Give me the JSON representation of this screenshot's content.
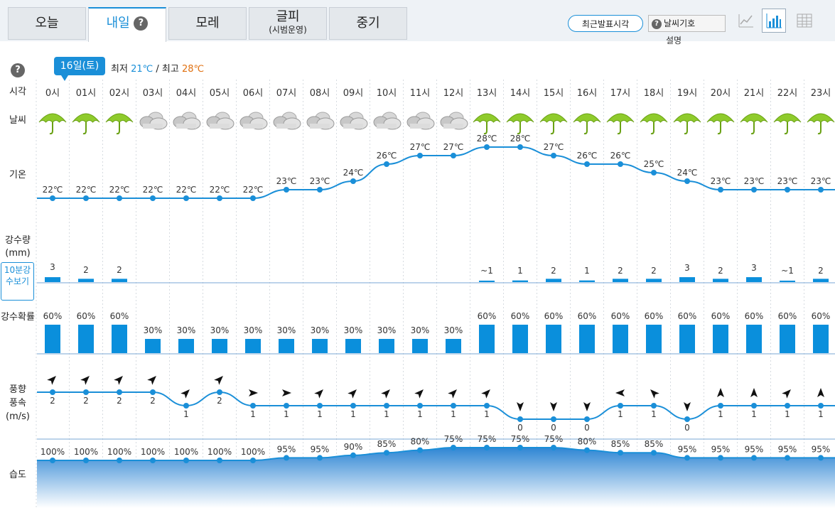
{
  "tabs": [
    {
      "label": "오늘",
      "sub": ""
    },
    {
      "label": "내일",
      "sub": ""
    },
    {
      "label": "모레",
      "sub": ""
    },
    {
      "label": "글피",
      "sub": "(시범운영)"
    },
    {
      "label": "중기",
      "sub": ""
    }
  ],
  "help_glyph": "?",
  "buttons": {
    "recent": "최근발표시각",
    "symbols": "날씨기호",
    "symbols_desc": "설명"
  },
  "date": {
    "badge": "16일(토)",
    "min_label": "최저",
    "min_value": "21℃",
    "sep": "/",
    "max_label": "최고",
    "max_value": "28℃"
  },
  "row_labels": {
    "time": "시각",
    "weather": "날씨",
    "temp": "기온",
    "precip": "강수량",
    "precip_unit": "(mm)",
    "ten_min": "10분강수보기",
    "prob": "강수확률",
    "wind1": "풍향",
    "wind2": "풍속",
    "wind_unit": "(m/s)",
    "humidity": "습도"
  },
  "colors": {
    "accent": "#1a8fd8",
    "bar": "#0a8fdc",
    "max": "#e07010"
  },
  "hours": [
    "0시",
    "01시",
    "02시",
    "03시",
    "04시",
    "05시",
    "06시",
    "07시",
    "08시",
    "09시",
    "10시",
    "11시",
    "12시",
    "13시",
    "14시",
    "15시",
    "16시",
    "17시",
    "18시",
    "19시",
    "20시",
    "21시",
    "22시",
    "23시"
  ],
  "weather": [
    "umbrella-icon",
    "umbrella-icon",
    "umbrella-icon",
    "cloud-icon",
    "cloud-icon",
    "cloud-icon",
    "cloud-icon",
    "cloud-icon",
    "cloud-icon",
    "cloud-icon",
    "cloud-icon",
    "cloud-icon",
    "cloud-icon",
    "umbrella-icon",
    "umbrella-icon",
    "umbrella-icon",
    "umbrella-icon",
    "umbrella-icon",
    "umbrella-icon",
    "umbrella-icon",
    "umbrella-icon",
    "umbrella-icon",
    "umbrella-icon",
    "umbrella-icon"
  ],
  "temp": [
    22,
    22,
    22,
    22,
    22,
    22,
    22,
    23,
    23,
    24,
    26,
    27,
    27,
    28,
    28,
    27,
    26,
    26,
    25,
    24,
    23,
    23,
    23,
    23
  ],
  "temp_unit": "℃",
  "precip": [
    "3",
    "2",
    "2",
    "",
    "",
    "",
    "",
    "",
    "",
    "",
    "",
    "",
    "",
    "~1",
    "1",
    "2",
    "1",
    "2",
    "2",
    "3",
    "2",
    "3",
    "~1",
    "2"
  ],
  "precip_amount": [
    3,
    2,
    2,
    0,
    0,
    0,
    0,
    0,
    0,
    0,
    0,
    0,
    0,
    0.5,
    1,
    2,
    1,
    2,
    2,
    3,
    2,
    3,
    0.5,
    2
  ],
  "prob": [
    60,
    60,
    60,
    30,
    30,
    30,
    30,
    30,
    30,
    30,
    30,
    30,
    30,
    60,
    60,
    60,
    60,
    60,
    60,
    60,
    60,
    60,
    60,
    60
  ],
  "prob_unit": "%",
  "wind_dir": [
    "NE",
    "NE",
    "NE",
    "NE",
    "NE",
    "NE",
    "E",
    "E",
    "NE",
    "NE",
    "NE",
    "NE",
    "NE",
    "NE",
    "S",
    "S",
    "S",
    "W",
    "NW",
    "S",
    "N",
    "N",
    "NE",
    "N"
  ],
  "wind_speed": [
    2,
    2,
    2,
    2,
    1,
    2,
    1,
    1,
    1,
    1,
    1,
    1,
    1,
    1,
    0,
    0,
    0,
    1,
    1,
    0,
    1,
    1,
    1,
    1
  ],
  "humidity": [
    100,
    100,
    100,
    100,
    100,
    100,
    100,
    95,
    95,
    90,
    85,
    80,
    75,
    75,
    75,
    75,
    80,
    85,
    85,
    95,
    95,
    95,
    95,
    95
  ],
  "humidity_unit": "%"
}
